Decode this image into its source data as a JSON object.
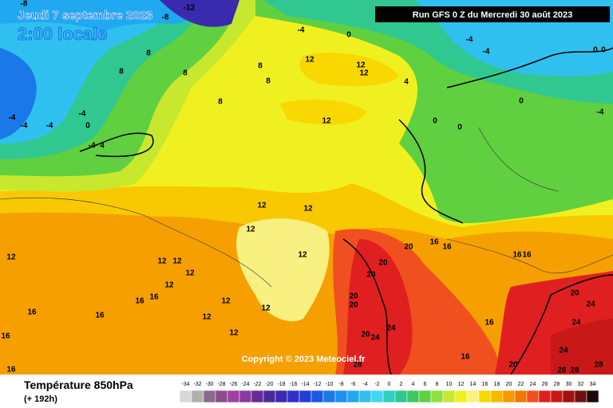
{
  "header": {
    "date": "Jeudi 7 septembre 2023",
    "time": "2:00 locale",
    "run": "Run GFS 0 Z du Mercredi 30 août 2023",
    "copyright": "Copyright © 2023 Meteociel.fr"
  },
  "footer": {
    "title": "Température 850hPa",
    "lead": "(+ 192h)"
  },
  "legend": {
    "values": [
      -34,
      -32,
      -30,
      -28,
      -26,
      -24,
      -22,
      -20,
      -18,
      -16,
      -14,
      -12,
      -10,
      -8,
      -6,
      -4,
      -2,
      0,
      2,
      4,
      6,
      8,
      10,
      12,
      14,
      16,
      18,
      20,
      22,
      24,
      26,
      28,
      30,
      32,
      34
    ],
    "colors": [
      "#d8d8d8",
      "#b0b0b0",
      "#8a6a8a",
      "#8c4c8c",
      "#a040a0",
      "#8a3aa0",
      "#6a2a9a",
      "#4a2a9a",
      "#3a2ab0",
      "#3030c8",
      "#2040d8",
      "#1a5ae0",
      "#1a78e8",
      "#1a90f0",
      "#20a8f0",
      "#30c0f0",
      "#40d8f0",
      "#30d0c0",
      "#30c890",
      "#40c860",
      "#60d040",
      "#90e040",
      "#c8e830",
      "#f0f020",
      "#f8f080",
      "#f8d800",
      "#f8b800",
      "#f89800",
      "#f07800",
      "#f05020",
      "#e02020",
      "#c81818",
      "#a01010",
      "#701010",
      "#200808"
    ]
  },
  "map": {
    "labels": [
      -8,
      -12,
      -8,
      -4,
      0,
      -4,
      -4,
      0,
      0,
      8,
      8,
      8,
      8,
      12,
      12,
      12,
      8,
      4,
      -4,
      -4,
      -4,
      -4,
      0,
      -4,
      4,
      8,
      12,
      0,
      0,
      0,
      -4,
      12,
      12,
      12,
      12,
      20,
      16,
      16,
      16,
      16,
      12,
      12,
      12,
      20,
      20,
      12,
      12,
      16,
      16,
      12,
      20,
      24,
      20,
      20,
      12,
      16,
      16,
      12,
      16,
      24,
      24,
      20,
      24,
      12,
      16,
      16,
      24,
      16,
      20,
      28,
      28,
      28,
      28
    ]
  }
}
